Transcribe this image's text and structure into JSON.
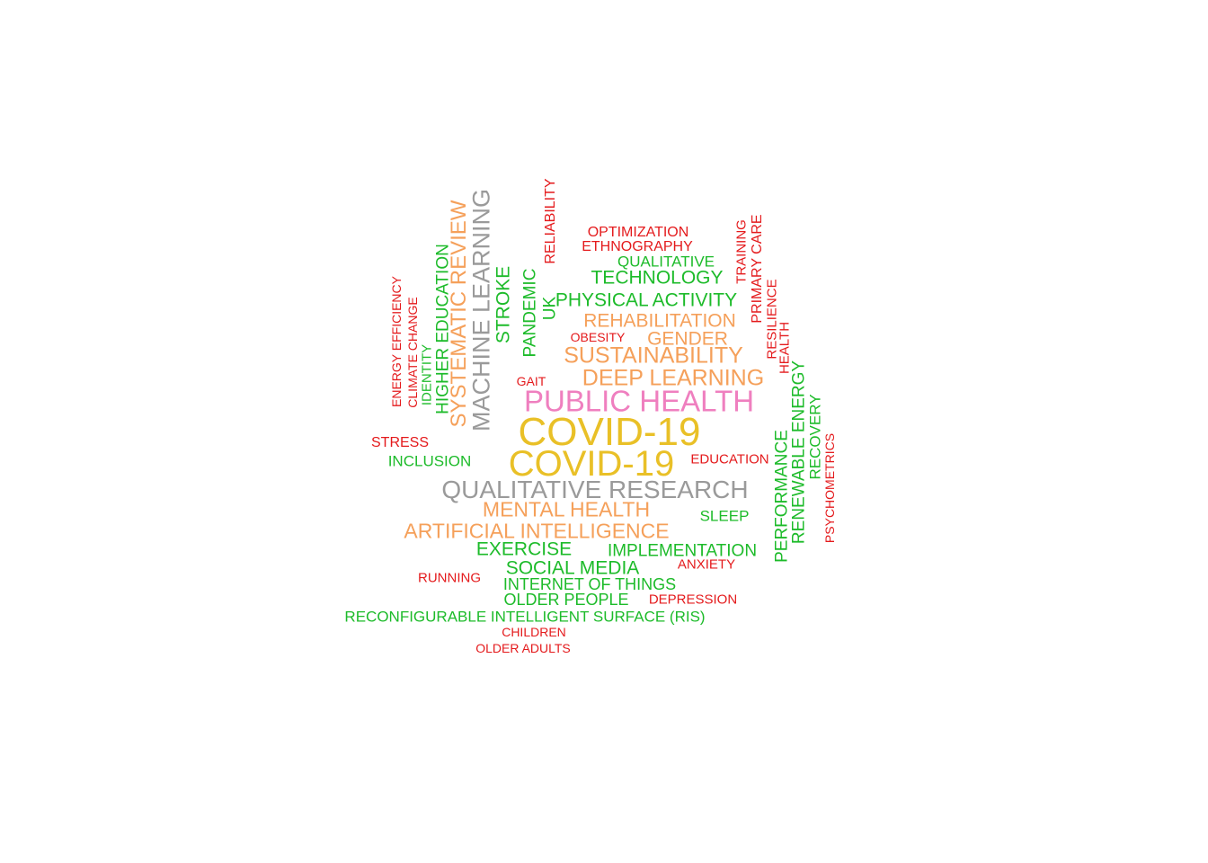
{
  "palette": {
    "red": "#e41a1c",
    "green": "#1dbb2a",
    "orange": "#f5a05a",
    "gray": "#9a9a9a",
    "pink": "#ef7fbf",
    "gold": "#e9c027"
  },
  "words": [
    {
      "text": "COVID-19",
      "color": "gold"
    },
    {
      "text": "COVID-19",
      "color": "gold"
    },
    {
      "text": "PUBLIC HEALTH",
      "color": "pink"
    },
    {
      "text": "QUALITATIVE RESEARCH",
      "color": "gray"
    },
    {
      "text": "MACHINE LEARNING",
      "color": "gray"
    },
    {
      "text": "SYSTEMATIC REVIEW",
      "color": "orange"
    },
    {
      "text": "DEEP LEARNING",
      "color": "orange"
    },
    {
      "text": "SUSTAINABILITY",
      "color": "orange"
    },
    {
      "text": "ARTIFICIAL INTELLIGENCE",
      "color": "orange"
    },
    {
      "text": "MENTAL HEALTH",
      "color": "orange"
    },
    {
      "text": "REHABILITATION",
      "color": "orange"
    },
    {
      "text": "GENDER",
      "color": "orange"
    },
    {
      "text": "PHYSICAL ACTIVITY",
      "color": "green"
    },
    {
      "text": "TECHNOLOGY",
      "color": "green"
    },
    {
      "text": "QUALITATIVE",
      "color": "green"
    },
    {
      "text": "STROKE",
      "color": "green"
    },
    {
      "text": "PANDEMIC",
      "color": "green"
    },
    {
      "text": "UK",
      "color": "green"
    },
    {
      "text": "HIGHER EDUCATION",
      "color": "green"
    },
    {
      "text": "IDENTITY",
      "color": "green"
    },
    {
      "text": "INCLUSION",
      "color": "green"
    },
    {
      "text": "EXERCISE",
      "color": "green"
    },
    {
      "text": "SOCIAL MEDIA",
      "color": "green"
    },
    {
      "text": "INTERNET OF THINGS",
      "color": "green"
    },
    {
      "text": "OLDER PEOPLE",
      "color": "green"
    },
    {
      "text": "RECONFIGURABLE INTELLIGENT SURFACE (RIS)",
      "color": "green"
    },
    {
      "text": "IMPLEMENTATION",
      "color": "green"
    },
    {
      "text": "SLEEP",
      "color": "green"
    },
    {
      "text": "PERFORMANCE",
      "color": "green"
    },
    {
      "text": "RENEWABLE ENERGY",
      "color": "green"
    },
    {
      "text": "RECOVERY",
      "color": "green"
    },
    {
      "text": "OPTIMIZATION",
      "color": "red"
    },
    {
      "text": "ETHNOGRAPHY",
      "color": "red"
    },
    {
      "text": "RELIABILITY",
      "color": "red"
    },
    {
      "text": "OBESITY",
      "color": "red"
    },
    {
      "text": "GAIT",
      "color": "red"
    },
    {
      "text": "TRAINING",
      "color": "red"
    },
    {
      "text": "PRIMARY CARE",
      "color": "red"
    },
    {
      "text": "RESILIENCE",
      "color": "red"
    },
    {
      "text": "HEALTH",
      "color": "red"
    },
    {
      "text": "ENERGY EFFICIENCY",
      "color": "red"
    },
    {
      "text": "CLIMATE CHANGE",
      "color": "red"
    },
    {
      "text": "STRESS",
      "color": "red"
    },
    {
      "text": "EDUCATION",
      "color": "red"
    },
    {
      "text": "PSYCHOMETRICS",
      "color": "red"
    },
    {
      "text": "ANXIETY",
      "color": "red"
    },
    {
      "text": "RUNNING",
      "color": "red"
    },
    {
      "text": "DEPRESSION",
      "color": "red"
    },
    {
      "text": "CHILDREN",
      "color": "red"
    },
    {
      "text": "OLDER ADULTS",
      "color": "red"
    }
  ]
}
